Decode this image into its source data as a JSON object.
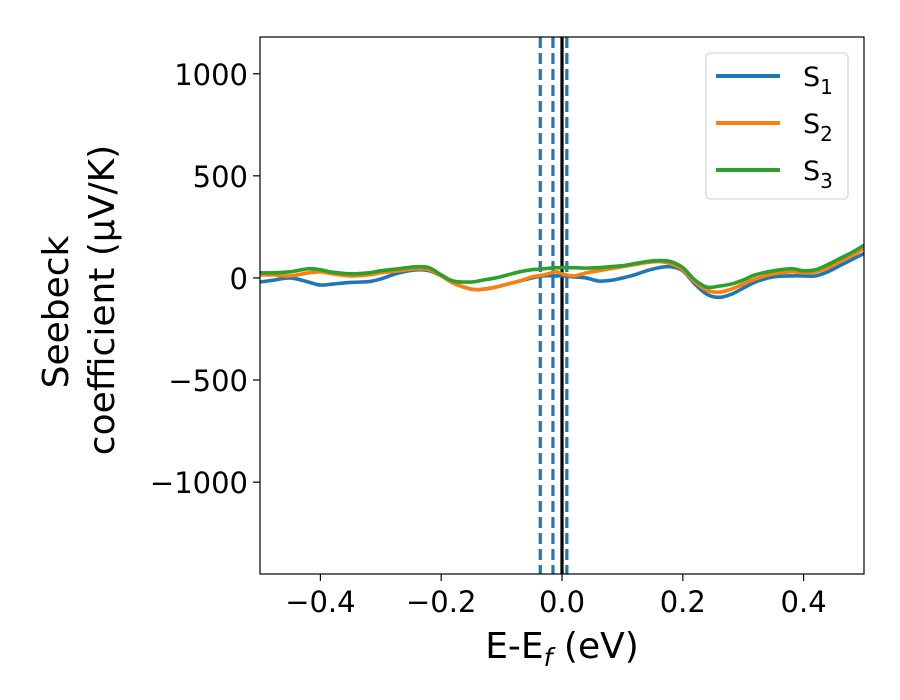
{
  "chart_data": {
    "type": "line",
    "title": "",
    "xlabel_parts": {
      "main": "E-E",
      "sub": "f",
      "tail": " (eV)"
    },
    "ylabel_lines": [
      "Seebeck",
      "coefficient  (μV/K)"
    ],
    "xlim": [
      -0.5,
      0.5
    ],
    "ylim": [
      -1450,
      1180
    ],
    "xticks": [
      -0.4,
      -0.2,
      0.0,
      0.2,
      0.4
    ],
    "xtick_labels": [
      "−0.4",
      "−0.2",
      "0.0",
      "0.2",
      "0.4"
    ],
    "yticks": [
      -1000,
      -500,
      0,
      500,
      1000
    ],
    "ytick_labels": [
      "−1000",
      "−500",
      "0",
      "500",
      "1000"
    ],
    "grid": false,
    "legend_position": "top-right",
    "vlines": [
      {
        "x": -0.036,
        "style": "dashed",
        "color": "#1f77b4"
      },
      {
        "x": -0.015,
        "style": "dashed",
        "color": "#1f77b4"
      },
      {
        "x": 0.008,
        "style": "dashed",
        "color": "#1f77b4"
      },
      {
        "x": 0.0,
        "style": "solid",
        "color": "#000000"
      }
    ],
    "series": [
      {
        "name": "S",
        "sub": "1",
        "color": "#1f77b4",
        "x": [
          -0.5,
          -0.48,
          -0.45,
          -0.42,
          -0.4,
          -0.38,
          -0.35,
          -0.32,
          -0.3,
          -0.27,
          -0.24,
          -0.22,
          -0.2,
          -0.18,
          -0.15,
          -0.13,
          -0.11,
          -0.09,
          -0.07,
          -0.05,
          -0.03,
          -0.01,
          0.0,
          0.02,
          0.04,
          0.06,
          0.08,
          0.1,
          0.12,
          0.14,
          0.16,
          0.18,
          0.2,
          0.22,
          0.24,
          0.26,
          0.28,
          0.3,
          0.32,
          0.35,
          0.38,
          0.4,
          0.42,
          0.44,
          0.46,
          0.48,
          0.5
        ],
        "y": [
          -20,
          -12,
          0,
          -20,
          -35,
          -30,
          -22,
          -18,
          -5,
          25,
          40,
          35,
          10,
          -25,
          -55,
          -55,
          -45,
          -30,
          -15,
          0,
          10,
          10,
          10,
          5,
          0,
          -15,
          -12,
          0,
          15,
          35,
          50,
          55,
          35,
          -30,
          -80,
          -95,
          -80,
          -50,
          -20,
          5,
          10,
          10,
          10,
          30,
          60,
          90,
          120
        ]
      },
      {
        "name": "S",
        "sub": "2",
        "color": "#ff7f0e",
        "x": [
          -0.5,
          -0.48,
          -0.45,
          -0.42,
          -0.4,
          -0.38,
          -0.35,
          -0.32,
          -0.3,
          -0.27,
          -0.24,
          -0.22,
          -0.2,
          -0.18,
          -0.15,
          -0.13,
          -0.11,
          -0.09,
          -0.07,
          -0.05,
          -0.03,
          -0.01,
          0.0,
          0.02,
          0.04,
          0.06,
          0.08,
          0.1,
          0.12,
          0.14,
          0.16,
          0.18,
          0.2,
          0.22,
          0.24,
          0.26,
          0.28,
          0.3,
          0.32,
          0.35,
          0.38,
          0.4,
          0.42,
          0.44,
          0.46,
          0.48,
          0.5
        ],
        "y": [
          15,
          15,
          10,
          25,
          30,
          20,
          10,
          15,
          25,
          35,
          45,
          40,
          10,
          -25,
          -55,
          -55,
          -45,
          -30,
          -15,
          5,
          15,
          30,
          20,
          10,
          25,
          35,
          45,
          55,
          65,
          75,
          80,
          70,
          40,
          -20,
          -60,
          -70,
          -55,
          -30,
          -5,
          20,
          30,
          25,
          30,
          50,
          80,
          110,
          145
        ]
      },
      {
        "name": "S",
        "sub": "3",
        "color": "#2ca02c",
        "x": [
          -0.5,
          -0.48,
          -0.45,
          -0.42,
          -0.4,
          -0.38,
          -0.35,
          -0.32,
          -0.3,
          -0.27,
          -0.24,
          -0.22,
          -0.2,
          -0.18,
          -0.15,
          -0.13,
          -0.11,
          -0.09,
          -0.07,
          -0.05,
          -0.03,
          -0.01,
          0.0,
          0.02,
          0.04,
          0.06,
          0.08,
          0.1,
          0.12,
          0.14,
          0.16,
          0.18,
          0.2,
          0.22,
          0.24,
          0.26,
          0.28,
          0.3,
          0.32,
          0.35,
          0.38,
          0.4,
          0.42,
          0.44,
          0.46,
          0.48,
          0.5
        ],
        "y": [
          25,
          25,
          30,
          45,
          40,
          28,
          20,
          25,
          35,
          45,
          55,
          50,
          15,
          -15,
          -20,
          -10,
          0,
          15,
          30,
          40,
          45,
          50,
          50,
          50,
          48,
          50,
          55,
          60,
          70,
          80,
          85,
          80,
          50,
          -10,
          -45,
          -40,
          -30,
          -10,
          15,
          35,
          45,
          35,
          40,
          65,
          95,
          125,
          160
        ]
      }
    ]
  }
}
